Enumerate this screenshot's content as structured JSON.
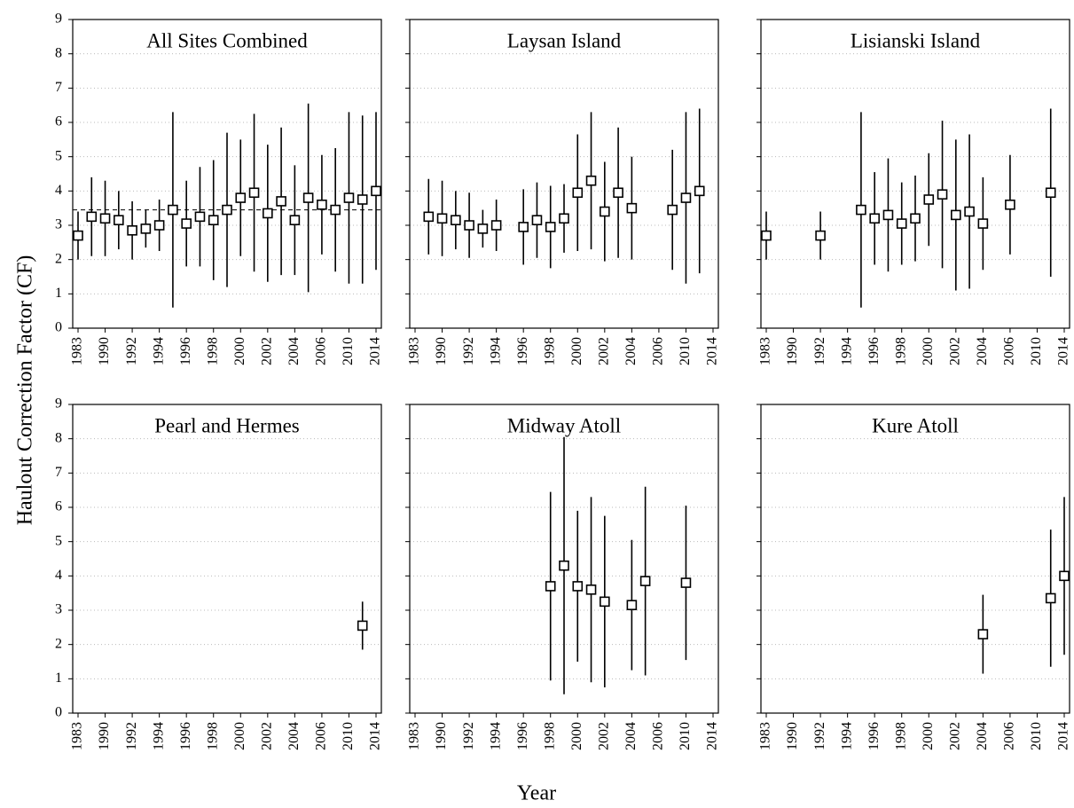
{
  "shared": {
    "y_label": "Haulout Correction Factor (CF)",
    "x_label": "Year"
  },
  "chart_data": [
    {
      "type": "errorbar",
      "title": "All Sites Combined",
      "categories": [
        "1983",
        null,
        "1990",
        null,
        "1992",
        null,
        "1994",
        null,
        "1996",
        null,
        "1998",
        null,
        "2000",
        null,
        "2002",
        null,
        "2004",
        null,
        "2006",
        null,
        "2010",
        null,
        "2014"
      ],
      "values": [
        2.7,
        3.25,
        3.2,
        3.15,
        2.85,
        2.9,
        3.0,
        3.45,
        3.05,
        3.25,
        3.15,
        3.45,
        3.8,
        3.95,
        3.35,
        3.7,
        3.15,
        3.8,
        3.6,
        3.45,
        3.8,
        3.75,
        4.0
      ],
      "errors": [
        0.7,
        1.15,
        1.1,
        0.85,
        0.85,
        0.55,
        0.75,
        2.85,
        1.25,
        1.45,
        1.75,
        2.25,
        1.7,
        2.3,
        2.0,
        2.15,
        1.6,
        2.75,
        1.45,
        1.8,
        2.5,
        2.45,
        2.3
      ],
      "mean_line": 3.45,
      "ylim": [
        0,
        9
      ],
      "yticks": [
        0,
        1,
        2,
        3,
        4,
        5,
        6,
        7,
        8,
        9
      ],
      "ytick_labels": true,
      "grid": true,
      "color": "#000000"
    },
    {
      "type": "errorbar",
      "title": "Laysan Island",
      "categories": [
        "1983",
        null,
        "1990",
        null,
        "1992",
        null,
        "1994",
        null,
        "1996",
        null,
        "1998",
        null,
        "2000",
        null,
        "2002",
        null,
        "2004",
        null,
        "2006",
        null,
        "2010",
        null,
        "2014"
      ],
      "values": [
        null,
        3.25,
        3.2,
        3.15,
        3.0,
        2.9,
        3.0,
        null,
        2.95,
        3.15,
        2.95,
        3.2,
        3.95,
        4.3,
        3.4,
        3.95,
        3.5,
        null,
        null,
        3.45,
        3.8,
        4.0,
        null
      ],
      "errors": [
        null,
        1.1,
        1.1,
        0.85,
        0.95,
        0.55,
        0.75,
        null,
        1.1,
        1.1,
        1.2,
        1.0,
        1.7,
        2.0,
        1.45,
        1.9,
        1.5,
        null,
        null,
        1.75,
        2.5,
        2.4,
        null
      ],
      "ylim": [
        0,
        9
      ],
      "yticks": [
        0,
        1,
        2,
        3,
        4,
        5,
        6,
        7,
        8,
        9
      ],
      "ytick_labels": false,
      "grid": true,
      "color": "#000000"
    },
    {
      "type": "errorbar",
      "title": "Lisianski Island",
      "categories": [
        "1983",
        null,
        "1990",
        null,
        "1992",
        null,
        "1994",
        null,
        "1996",
        null,
        "1998",
        null,
        "2000",
        null,
        "2002",
        null,
        "2004",
        null,
        "2006",
        null,
        "2010",
        null,
        "2014"
      ],
      "values": [
        2.7,
        null,
        null,
        null,
        2.7,
        null,
        null,
        3.45,
        3.2,
        3.3,
        3.05,
        3.2,
        3.75,
        3.9,
        3.3,
        3.4,
        3.05,
        null,
        3.6,
        null,
        null,
        3.95,
        null
      ],
      "errors": [
        0.7,
        null,
        null,
        null,
        0.7,
        null,
        null,
        2.85,
        1.35,
        1.65,
        1.2,
        1.25,
        1.35,
        2.15,
        2.2,
        2.25,
        1.35,
        null,
        1.45,
        null,
        null,
        2.45,
        null
      ],
      "ylim": [
        0,
        9
      ],
      "yticks": [
        0,
        1,
        2,
        3,
        4,
        5,
        6,
        7,
        8,
        9
      ],
      "ytick_labels": false,
      "grid": true,
      "color": "#000000"
    },
    {
      "type": "errorbar",
      "title": "Pearl and Hermes",
      "categories": [
        "1983",
        null,
        "1990",
        null,
        "1992",
        null,
        "1994",
        null,
        "1996",
        null,
        "1998",
        null,
        "2000",
        null,
        "2002",
        null,
        "2004",
        null,
        "2006",
        null,
        "2010",
        null,
        "2014"
      ],
      "values": [
        null,
        null,
        null,
        null,
        null,
        null,
        null,
        null,
        null,
        null,
        null,
        null,
        null,
        null,
        null,
        null,
        null,
        null,
        null,
        null,
        null,
        2.55,
        null
      ],
      "errors": [
        null,
        null,
        null,
        null,
        null,
        null,
        null,
        null,
        null,
        null,
        null,
        null,
        null,
        null,
        null,
        null,
        null,
        null,
        null,
        null,
        null,
        0.7,
        null
      ],
      "ylim": [
        0,
        9
      ],
      "yticks": [
        0,
        1,
        2,
        3,
        4,
        5,
        6,
        7,
        8,
        9
      ],
      "ytick_labels": true,
      "grid": true,
      "color": "#000000"
    },
    {
      "type": "errorbar",
      "title": "Midway Atoll",
      "categories": [
        "1983",
        null,
        "1990",
        null,
        "1992",
        null,
        "1994",
        null,
        "1996",
        null,
        "1998",
        null,
        "2000",
        null,
        "2002",
        null,
        "2004",
        null,
        "2006",
        null,
        "2010",
        null,
        "2014"
      ],
      "values": [
        null,
        null,
        null,
        null,
        null,
        null,
        null,
        null,
        null,
        null,
        3.7,
        4.3,
        3.7,
        3.6,
        3.25,
        null,
        3.15,
        3.85,
        null,
        null,
        3.8,
        null,
        null
      ],
      "errors": [
        null,
        null,
        null,
        null,
        null,
        null,
        null,
        null,
        null,
        null,
        2.75,
        3.75,
        2.2,
        2.7,
        2.5,
        null,
        1.9,
        2.75,
        null,
        null,
        2.25,
        null,
        null
      ],
      "ylim": [
        0,
        9
      ],
      "yticks": [
        0,
        1,
        2,
        3,
        4,
        5,
        6,
        7,
        8,
        9
      ],
      "ytick_labels": false,
      "grid": true,
      "color": "#000000"
    },
    {
      "type": "errorbar",
      "title": "Kure Atoll",
      "categories": [
        "1983",
        null,
        "1990",
        null,
        "1992",
        null,
        "1994",
        null,
        "1996",
        null,
        "1998",
        null,
        "2000",
        null,
        "2002",
        null,
        "2004",
        null,
        "2006",
        null,
        "2010",
        null,
        "2014"
      ],
      "values": [
        null,
        null,
        null,
        null,
        null,
        null,
        null,
        null,
        null,
        null,
        null,
        null,
        null,
        null,
        null,
        null,
        2.3,
        null,
        null,
        null,
        null,
        3.35,
        4.0
      ],
      "errors": [
        null,
        null,
        null,
        null,
        null,
        null,
        null,
        null,
        null,
        null,
        null,
        null,
        null,
        null,
        null,
        null,
        1.15,
        null,
        null,
        null,
        null,
        2.0,
        2.3
      ],
      "ylim": [
        0,
        9
      ],
      "yticks": [
        0,
        1,
        2,
        3,
        4,
        5,
        6,
        7,
        8,
        9
      ],
      "ytick_labels": false,
      "grid": true,
      "color": "#000000"
    }
  ]
}
